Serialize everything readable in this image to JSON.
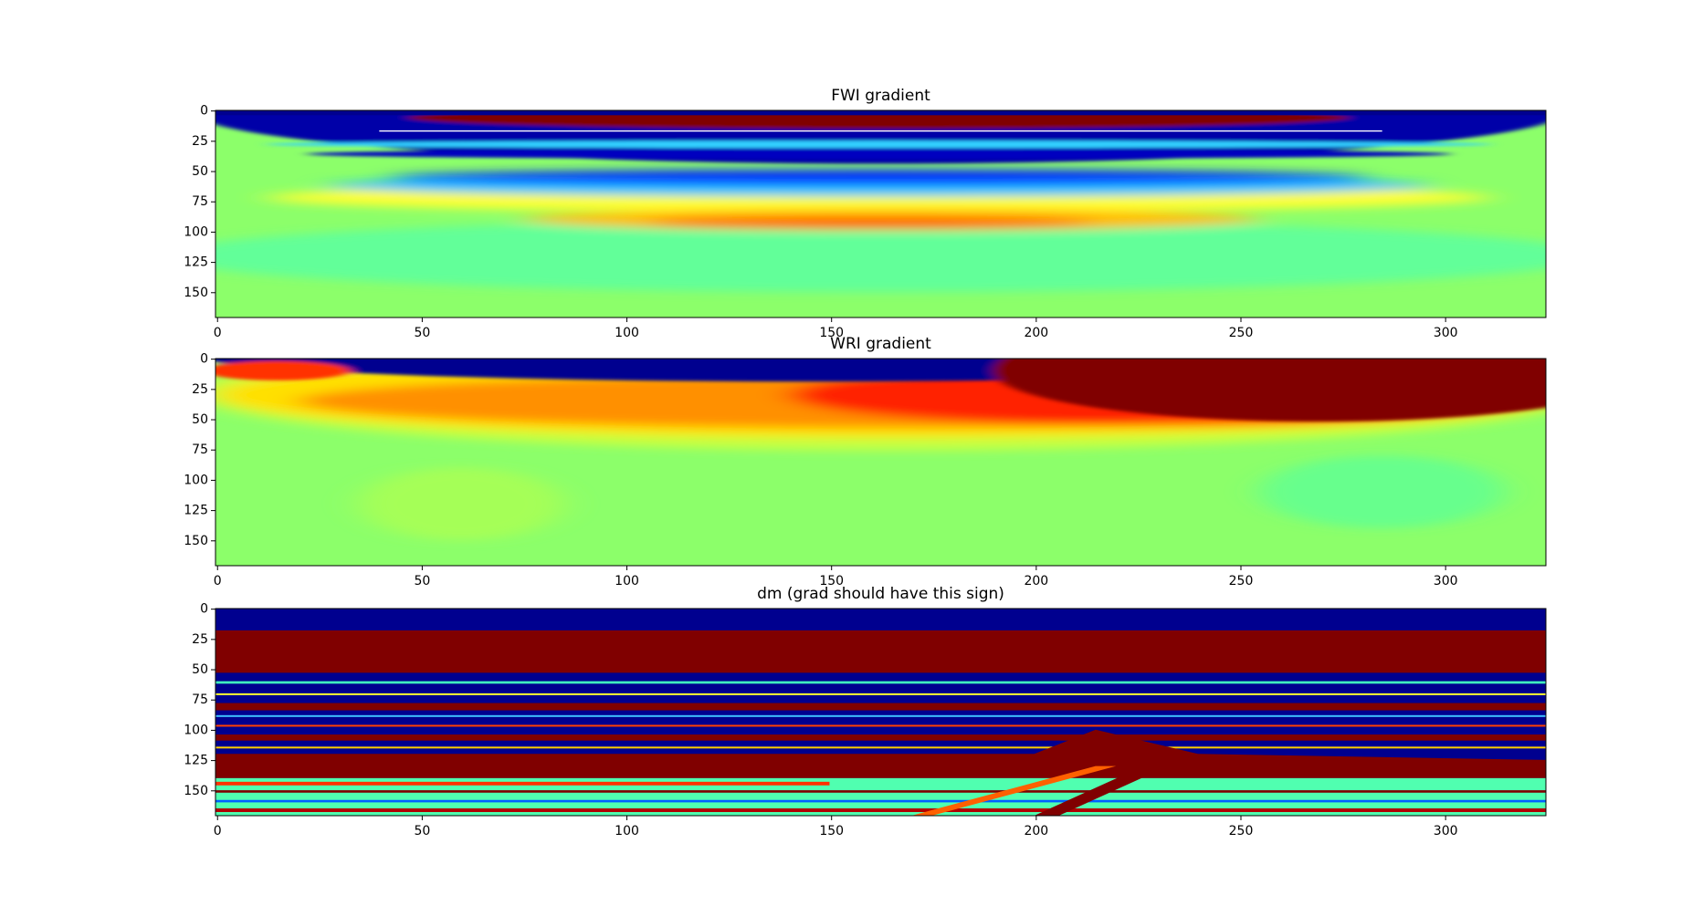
{
  "chart_data": [
    {
      "type": "heatmap",
      "title": "FWI gradient",
      "xlim": [
        -0.5,
        324.5
      ],
      "ylim": [
        170.5,
        -0.5
      ],
      "xticks": [
        0,
        50,
        100,
        150,
        200,
        250,
        300
      ],
      "yticks": [
        0,
        25,
        50,
        75,
        100,
        125,
        150
      ]
    },
    {
      "type": "heatmap",
      "title": "WRI gradient",
      "xlim": [
        -0.5,
        324.5
      ],
      "ylim": [
        170.5,
        -0.5
      ],
      "xticks": [
        0,
        50,
        100,
        150,
        200,
        250,
        300
      ],
      "yticks": [
        0,
        25,
        50,
        75,
        100,
        125,
        150
      ]
    },
    {
      "type": "heatmap",
      "title": "dm (grad should have this sign)",
      "xlim": [
        -0.5,
        324.5
      ],
      "ylim": [
        170.5,
        -0.5
      ],
      "xticks": [
        0,
        50,
        100,
        150,
        200,
        250,
        300
      ],
      "yticks": [
        0,
        25,
        50,
        75,
        100,
        125,
        150
      ]
    }
  ]
}
